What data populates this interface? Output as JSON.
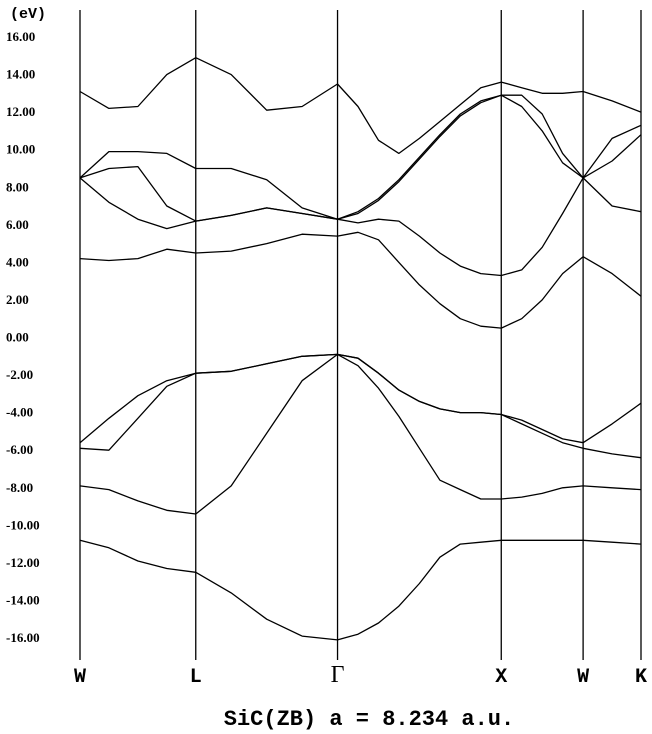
{
  "chart_data": {
    "type": "line",
    "title": "SiC(ZB) a = 8.234 a.u.",
    "ylabel": "(eV)",
    "ylim": [
      -16,
      16
    ],
    "yticks": [
      "16.00",
      "14.00",
      "12.00",
      "10.00",
      "8.00",
      "6.00",
      "4.00",
      "2.00",
      "0.00",
      "-2.00",
      "-4.00",
      "-6.00",
      "-8.00",
      "-10.00",
      "-12.00",
      "-14.00",
      "-16.00"
    ],
    "k_points": [
      {
        "label": "W",
        "x": 0.0
      },
      {
        "label": "L",
        "x": 0.7071
      },
      {
        "label": "Γ",
        "x": 1.5731
      },
      {
        "label": "X",
        "x": 2.5731
      },
      {
        "label": "W",
        "x": 3.0731
      },
      {
        "label": "K",
        "x": 3.4267
      }
    ],
    "x": [
      0.0,
      0.1768,
      0.3536,
      0.5303,
      0.7071,
      0.9236,
      1.1401,
      1.3566,
      1.5731,
      1.6981,
      1.8231,
      1.9481,
      2.0731,
      2.1981,
      2.3231,
      2.4481,
      2.5731,
      2.6981,
      2.8231,
      2.9481,
      3.0731,
      3.2499,
      3.4267
    ],
    "series": [
      {
        "values": [
          -10.8,
          -11.2,
          -11.9,
          -12.3,
          -12.5,
          -13.6,
          -15.0,
          -15.9,
          -16.1,
          -15.8,
          -15.2,
          -14.3,
          -13.1,
          -11.7,
          -11.0,
          -10.9,
          -10.8,
          -10.8,
          -10.8,
          -10.8,
          -10.8,
          -10.9,
          -11.0
        ]
      },
      {
        "values": [
          -7.9,
          -8.1,
          -8.7,
          -9.2,
          -9.4,
          -7.9,
          -5.1,
          -2.3,
          -0.9,
          -1.5,
          -2.7,
          -4.2,
          -5.9,
          -7.6,
          -8.1,
          -8.6,
          -8.6,
          -8.5,
          -8.3,
          -8.0,
          -7.9,
          -8.0,
          -8.1
        ]
      },
      {
        "values": [
          -5.9,
          -6.0,
          -4.3,
          -2.6,
          -1.9,
          -1.8,
          -1.4,
          -1.0,
          -0.9,
          -1.1,
          -1.9,
          -2.8,
          -3.4,
          -3.8,
          -4.0,
          -4.0,
          -4.1,
          -4.6,
          -5.1,
          -5.6,
          -5.9,
          -6.2,
          -6.4
        ]
      },
      {
        "values": [
          -5.6,
          -4.3,
          -3.1,
          -2.3,
          -1.9,
          -1.8,
          -1.4,
          -1.0,
          -0.9,
          -1.1,
          -1.9,
          -2.8,
          -3.4,
          -3.8,
          -4.0,
          -4.0,
          -4.1,
          -4.4,
          -4.9,
          -5.4,
          -5.6,
          -4.6,
          -3.5
        ]
      },
      {
        "values": [
          4.2,
          4.1,
          4.2,
          4.7,
          4.5,
          4.6,
          5.0,
          5.5,
          5.4,
          5.6,
          5.2,
          4.0,
          2.8,
          1.8,
          1.0,
          0.6,
          0.5,
          1.0,
          2.0,
          3.4,
          4.3,
          3.4,
          2.2
        ]
      },
      {
        "values": [
          8.5,
          7.2,
          6.3,
          5.8,
          6.2,
          6.5,
          6.9,
          6.6,
          6.3,
          6.1,
          6.3,
          6.2,
          5.4,
          4.5,
          3.8,
          3.4,
          3.3,
          3.6,
          4.8,
          6.6,
          8.5,
          9.4,
          10.8
        ]
      },
      {
        "values": [
          8.5,
          9.0,
          9.1,
          7.0,
          6.2,
          6.5,
          6.9,
          6.6,
          6.3,
          6.6,
          7.3,
          8.3,
          9.5,
          10.7,
          11.8,
          12.5,
          12.9,
          12.3,
          11.0,
          9.3,
          8.5,
          10.6,
          11.3
        ]
      },
      {
        "values": [
          8.5,
          9.9,
          9.9,
          9.8,
          9.0,
          9.0,
          8.4,
          6.9,
          6.3,
          6.7,
          7.4,
          8.4,
          9.6,
          10.8,
          11.9,
          12.6,
          12.9,
          12.9,
          11.9,
          9.8,
          8.5,
          7.0,
          6.7
        ]
      },
      {
        "values": [
          13.1,
          12.2,
          12.3,
          14.0,
          14.9,
          14.0,
          12.1,
          12.3,
          13.5,
          12.3,
          10.5,
          9.8,
          10.6,
          11.5,
          12.4,
          13.3,
          13.6,
          13.3,
          13.0,
          13.0,
          13.1,
          12.6,
          12.0
        ]
      }
    ]
  }
}
